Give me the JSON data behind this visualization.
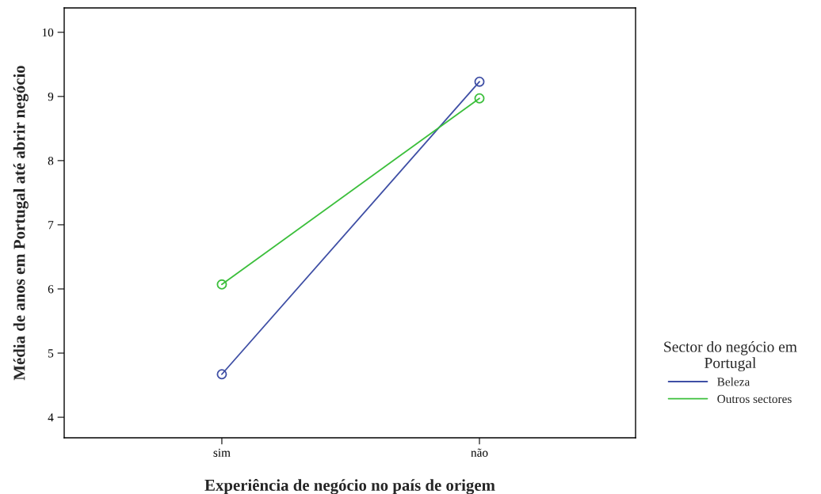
{
  "chart_data": {
    "type": "line",
    "xlabel": "Experiência de negócio no país de origem",
    "ylabel": "Média de anos em Portugal até abrir negócio",
    "legend_title": "Sector do negócio em\nPortugal",
    "categories": [
      "sim",
      "não"
    ],
    "series": [
      {
        "name": "Beleza",
        "color": "#3f4fa5",
        "values": [
          4.67,
          9.23
        ]
      },
      {
        "name": "Outros sectores",
        "color": "#3cbf3c",
        "values": [
          6.07,
          8.97
        ]
      }
    ],
    "ylim": [
      3.68,
      10.38
    ],
    "yticks": [
      4,
      5,
      6,
      7,
      8,
      9,
      10
    ],
    "marker": "circle",
    "grid": false,
    "legend": "right"
  }
}
